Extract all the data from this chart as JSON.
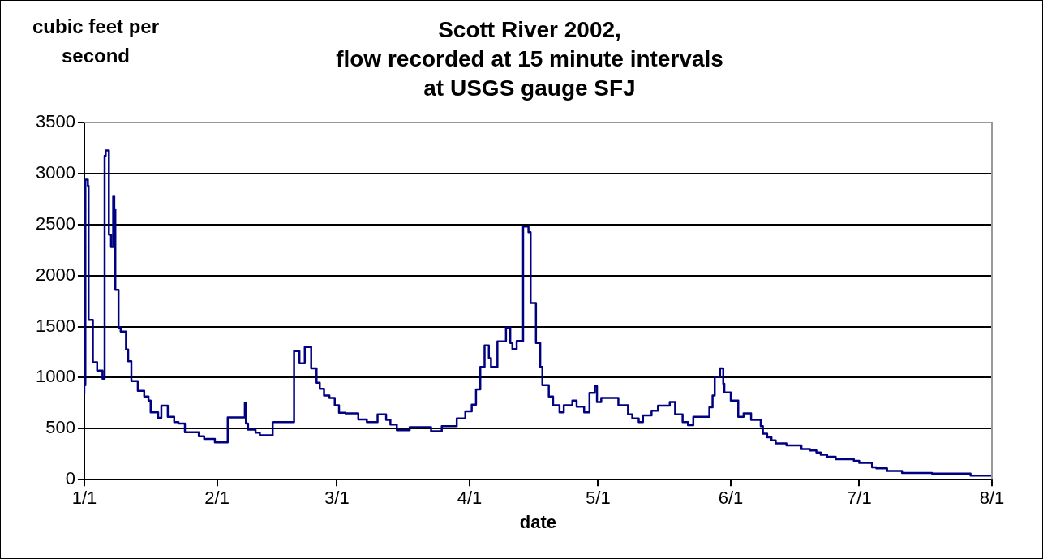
{
  "chart_data": {
    "type": "step",
    "title": "Scott River 2002,\nflow recorded at 15 minute intervals\nat USGS gauge SFJ",
    "xlabel": "date",
    "ylabel": "cubic feet per second",
    "color": "#000080",
    "x": [
      "2002-01-01",
      "2002-01-01T06:00",
      "2002-01-01T20:00",
      "2002-01-02",
      "2002-01-03",
      "2002-01-04",
      "2002-01-05T06:00",
      "2002-01-05T18:00",
      "2002-01-06",
      "2002-01-06T18:00",
      "2002-01-07T06:00",
      "2002-01-07T18:00",
      "2002-01-08",
      "2002-01-08T06:00",
      "2002-01-09",
      "2002-01-09T12:00",
      "2002-01-10T18:00",
      "2002-01-11T06:00",
      "2002-01-12",
      "2002-01-13T12:00",
      "2002-01-15",
      "2002-01-16",
      "2002-01-16T12:00",
      "2002-01-18T06:00",
      "2002-01-19",
      "2002-01-20T12:00",
      "2002-01-22",
      "2002-01-23",
      "2002-01-24T12:00",
      "2002-01-27T18:00",
      "2002-01-29",
      "2002-01-31T12:00",
      "2002-02-03T12:00",
      "2002-02-07T12:00",
      "2002-02-07T18:00",
      "2002-02-08T06:00",
      "2002-02-10",
      "2002-02-11",
      "2002-02-14",
      "2002-02-19",
      "2002-02-20T06:00",
      "2002-02-21T12:00",
      "2002-02-23",
      "2002-02-24T06:00",
      "2002-02-25",
      "2002-02-26",
      "2002-02-27T06:00",
      "2002-02-28T12:00",
      "2002-03-01T12:00",
      "2002-03-03",
      "2002-03-06",
      "2002-03-08",
      "2002-03-10T12:00",
      "2002-03-12T12:00",
      "2002-03-13T12:00",
      "2002-03-15",
      "2002-03-18",
      "2002-03-23",
      "2002-03-25T12:00",
      "2002-03-29",
      "2002-03-31",
      "2002-04-01T12:00",
      "2002-04-02T12:00",
      "2002-04-03T12:00",
      "2002-04-04T12:00",
      "2002-04-05T12:00",
      "2002-04-06",
      "2002-04-07T12:00",
      "2002-04-09T12:00",
      "2002-04-10T12:00",
      "2002-04-11",
      "2002-04-12",
      "2002-04-13T12:00",
      "2002-04-14T18:00",
      "2002-04-15T06:00",
      "2002-04-16T12:00",
      "2002-04-17T12:00",
      "2002-04-18",
      "2002-04-19T12:00",
      "2002-04-20T12:00",
      "2002-04-22",
      "2002-04-23",
      "2002-04-25",
      "2002-04-26",
      "2002-04-27T18:00",
      "2002-04-29",
      "2002-04-30T06:00",
      "2002-04-30T18:00",
      "2002-05-01T18:00",
      "2002-05-05T18:00",
      "2002-05-08",
      "2002-05-09",
      "2002-05-10T12:00",
      "2002-05-11T12:00",
      "2002-05-13T12:00",
      "2002-05-15",
      "2002-05-17T18:00",
      "2002-05-19",
      "2002-05-20T18:00",
      "2002-05-22",
      "2002-05-23T06:00",
      "2002-05-27",
      "2002-05-27T18:00",
      "2002-05-28T06:00",
      "2002-05-29T12:00",
      "2002-05-30T06:00",
      "2002-05-30T12:00",
      "2002-06-01",
      "2002-06-02T18:00",
      "2002-06-04",
      "2002-06-05T18:00",
      "2002-06-08",
      "2002-06-08T12:00",
      "2002-06-09T12:00",
      "2002-06-10T12:00",
      "2002-06-11T12:00",
      "2002-06-14",
      "2002-06-17T12:00",
      "2002-06-19T12:00",
      "2002-06-21",
      "2002-06-22",
      "2002-06-23T12:00",
      "2002-06-25T12:00",
      "2002-06-29T18:00",
      "2002-07-01",
      "2002-07-04",
      "2002-07-05",
      "2002-07-07T12:00",
      "2002-07-11",
      "2002-07-18",
      "2002-07-27",
      "2002-07-27T12:00",
      "2002-08-01"
    ],
    "values": [
      840,
      925,
      2940,
      2880,
      1565,
      1150,
      1070,
      990,
      3175,
      3225,
      2400,
      2280,
      2780,
      2650,
      1860,
      1490,
      1450,
      1275,
      1160,
      965,
      870,
      815,
      775,
      660,
      605,
      725,
      615,
      565,
      550,
      465,
      425,
      400,
      365,
      610,
      750,
      550,
      490,
      460,
      435,
      565,
      1260,
      1140,
      1300,
      1090,
      950,
      890,
      825,
      800,
      730,
      655,
      650,
      590,
      565,
      640,
      585,
      540,
      485,
      515,
      475,
      525,
      600,
      670,
      735,
      885,
      1105,
      1315,
      1190,
      1105,
      1355,
      1490,
      1340,
      1280,
      1360,
      2480,
      2425,
      1730,
      1340,
      1105,
      925,
      815,
      730,
      660,
      730,
      775,
      715,
      660,
      850,
      915,
      760,
      800,
      730,
      640,
      600,
      565,
      630,
      675,
      725,
      760,
      640,
      565,
      535,
      615,
      710,
      825,
      1010,
      1090,
      940,
      855,
      775,
      615,
      650,
      585,
      525,
      450,
      415,
      385,
      355,
      335,
      300,
      285,
      265,
      245,
      225,
      200,
      185,
      165,
      120,
      110,
      85,
      65,
      60,
      40,
      40
    ],
    "xlim": [
      "2002-01-01",
      "2002-08-01"
    ],
    "xticks": [
      {
        "value": "2002-01-01",
        "label": "1/1"
      },
      {
        "value": "2002-02-01",
        "label": "2/1"
      },
      {
        "value": "2002-03-01",
        "label": "3/1"
      },
      {
        "value": "2002-04-01",
        "label": "4/1"
      },
      {
        "value": "2002-05-01",
        "label": "5/1"
      },
      {
        "value": "2002-06-01",
        "label": "6/1"
      },
      {
        "value": "2002-07-01",
        "label": "7/1"
      },
      {
        "value": "2002-08-01",
        "label": "8/1"
      }
    ],
    "ylim": [
      0,
      3500
    ],
    "yticks": [
      0,
      500,
      1000,
      1500,
      2000,
      2500,
      3000,
      3500
    ],
    "grid": "y"
  }
}
